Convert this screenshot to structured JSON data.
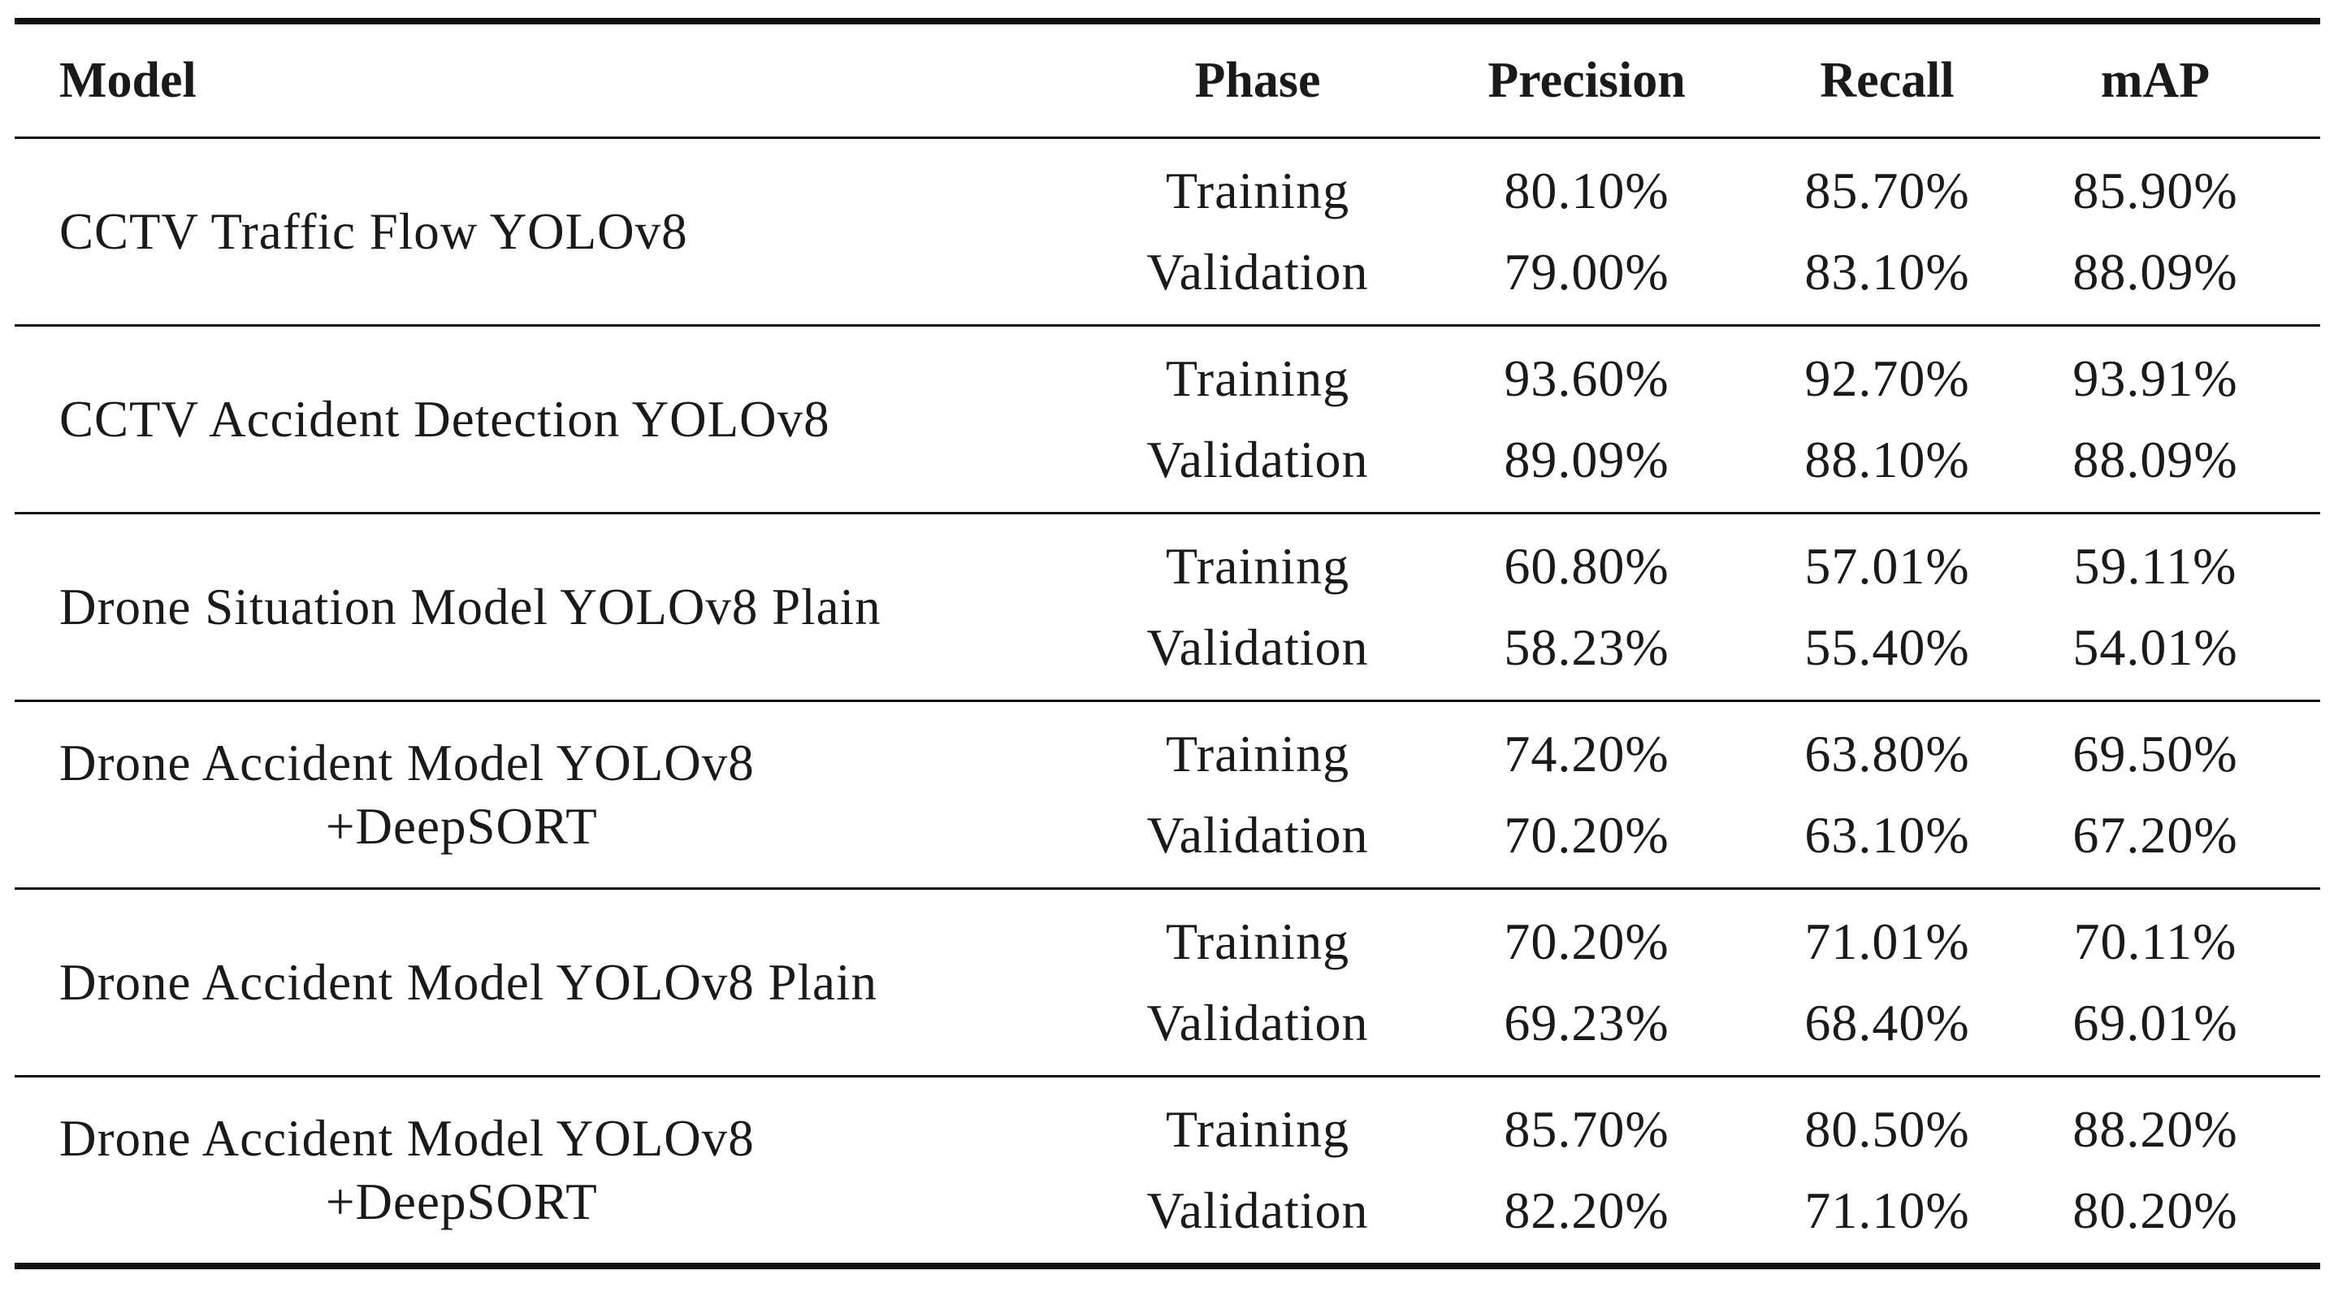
{
  "table": {
    "headers": {
      "model": "Model",
      "phase": "Phase",
      "precision": "Precision",
      "recall": "Recall",
      "map": "mAP"
    },
    "rows": [
      {
        "model_line1": "CCTV Traffic Flow YOLOv8",
        "model_line2": "",
        "training": {
          "phase": "Training",
          "precision": "80.10%",
          "recall": "85.70%",
          "map": "85.90%"
        },
        "validation": {
          "phase": "Validation",
          "precision": "79.00%",
          "recall": "83.10%",
          "map": "88.09%"
        }
      },
      {
        "model_line1": "CCTV Accident Detection YOLOv8",
        "model_line2": "",
        "training": {
          "phase": "Training",
          "precision": "93.60%",
          "recall": "92.70%",
          "map": "93.91%"
        },
        "validation": {
          "phase": "Validation",
          "precision": "89.09%",
          "recall": "88.10%",
          "map": "88.09%"
        }
      },
      {
        "model_line1": "Drone Situation Model YOLOv8 Plain",
        "model_line2": "",
        "training": {
          "phase": "Training",
          "precision": "60.80%",
          "recall": "57.01%",
          "map": "59.11%"
        },
        "validation": {
          "phase": "Validation",
          "precision": "58.23%",
          "recall": "55.40%",
          "map": "54.01%"
        }
      },
      {
        "model_line1": "Drone Accident Model YOLOv8",
        "model_line2": "+DeepSORT",
        "training": {
          "phase": "Training",
          "precision": "74.20%",
          "recall": "63.80%",
          "map": "69.50%"
        },
        "validation": {
          "phase": "Validation",
          "precision": "70.20%",
          "recall": "63.10%",
          "map": "67.20%"
        }
      },
      {
        "model_line1": "Drone Accident Model YOLOv8 Plain",
        "model_line2": "",
        "training": {
          "phase": "Training",
          "precision": "70.20%",
          "recall": "71.01%",
          "map": "70.11%"
        },
        "validation": {
          "phase": "Validation",
          "precision": "69.23%",
          "recall": "68.40%",
          "map": "69.01%"
        }
      },
      {
        "model_line1": "Drone Accident Model YOLOv8",
        "model_line2": "+DeepSORT",
        "training": {
          "phase": "Training",
          "precision": "85.70%",
          "recall": "80.50%",
          "map": "88.20%"
        },
        "validation": {
          "phase": "Validation",
          "precision": "82.20%",
          "recall": "71.10%",
          "map": "80.20%"
        }
      }
    ]
  }
}
